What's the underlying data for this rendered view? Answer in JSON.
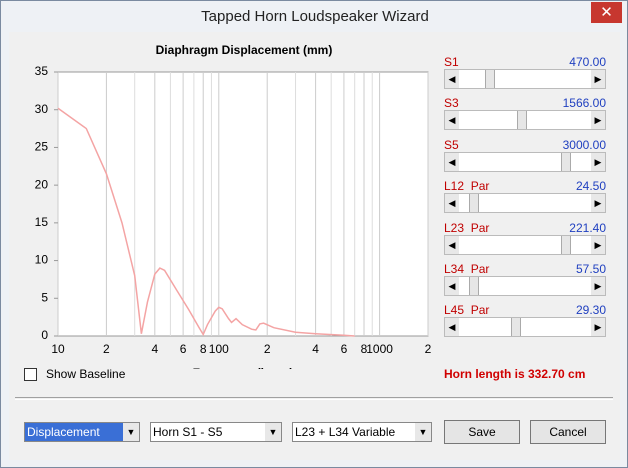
{
  "window": {
    "title": "Tapped Horn Loudspeaker Wizard"
  },
  "chart_data": {
    "type": "line",
    "title": "Diaphragm Displacement (mm)",
    "x_label": "Frequency (hertz)",
    "x": [
      10,
      15,
      20,
      25,
      30,
      33,
      36,
      40,
      43,
      46,
      55,
      65,
      75,
      80,
      85,
      95,
      100,
      105,
      115,
      120,
      128,
      140,
      160,
      170,
      180,
      190,
      220,
      300,
      400,
      600,
      700
    ],
    "series": [
      {
        "color": "#f4a4a4",
        "values": [
          30.2,
          27.5,
          21.5,
          15,
          8,
          0.3,
          4.5,
          8.2,
          9,
          8.7,
          6,
          3.5,
          1.2,
          0.2,
          1.5,
          3.3,
          3.8,
          3.6,
          2.3,
          1.8,
          2.3,
          1.5,
          0.9,
          0.8,
          1.6,
          1.7,
          1.1,
          0.5,
          0.3,
          0.1,
          0
        ]
      }
    ],
    "xscale": "log",
    "xlim": [
      10,
      2000
    ],
    "ylim": [
      0,
      35
    ],
    "xticks": [
      10,
      {
        "value": 20,
        "label": "2"
      },
      {
        "value": 40,
        "label": "4"
      },
      {
        "value": 60,
        "label": "6"
      },
      {
        "value": 80,
        "label": "8"
      },
      100,
      {
        "value": 200,
        "label": "2"
      },
      {
        "value": 400,
        "label": "4"
      },
      {
        "value": 600,
        "label": "6"
      },
      {
        "value": 800,
        "label": "8"
      },
      1000,
      {
        "value": 2000,
        "label": "2"
      }
    ],
    "xgrid_minor": [
      30,
      50,
      70,
      90,
      300,
      500,
      700,
      900
    ],
    "yticks": [
      0,
      5,
      10,
      15,
      20,
      25,
      30,
      35
    ],
    "grid": true
  },
  "checkbox": {
    "label": "Show Baseline"
  },
  "sliders": [
    {
      "label": "S1",
      "value": "470.00"
    },
    {
      "label": "S3",
      "value": "1566.00"
    },
    {
      "label": "S5",
      "value": "3000.00"
    },
    {
      "label": "L12  Par",
      "value": "24.50"
    },
    {
      "label": "L23  Par",
      "value": "221.40"
    },
    {
      "label": "L34  Par",
      "value": "57.50"
    },
    {
      "label": "L45  Par",
      "value": "29.30"
    }
  ],
  "horn_length": "Horn length is 332.70 cm",
  "dropdowns": [
    "Displacement",
    "Horn S1 - S5",
    "L23 + L34 Variable"
  ],
  "buttons": [
    "Save",
    "Cancel"
  ]
}
